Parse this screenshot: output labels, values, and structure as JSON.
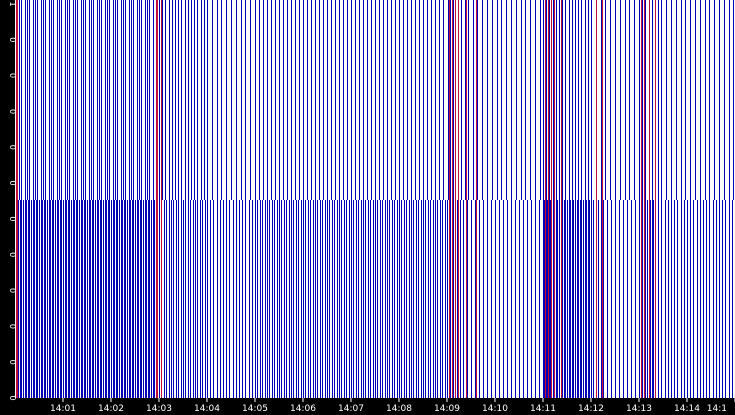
{
  "chart_data": {
    "type": "event-strip",
    "colors": {
      "background": "#ffffff",
      "frame": "#000000",
      "primary": "#0000b4",
      "secondary": "#c0103a",
      "text": "#ffffff"
    },
    "x_range": [
      "14:00:00",
      "14:15:00"
    ],
    "x_ticks": [
      "14:01",
      "14:02",
      "14:03",
      "14:04",
      "14:05",
      "14:06",
      "14:07",
      "14:08",
      "14:09",
      "14:10",
      "14:11",
      "14:12",
      "14:13",
      "14:14",
      "14:1"
    ],
    "y_ticks": [
      "1",
      "0",
      "0",
      "0",
      "0",
      "0",
      "0",
      "0",
      "0",
      "0",
      "0",
      "0"
    ],
    "series": [
      {
        "color": "#0000b4",
        "rows": "top",
        "events": [
          "14:00:02",
          "14:00:05",
          "14:00:08",
          "14:00:12",
          "14:00:15",
          "14:00:18",
          "14:00:22",
          "14:00:25",
          "14:00:28",
          "14:00:32",
          "14:00:35",
          "14:00:38",
          "14:00:42",
          "14:00:45",
          "14:00:48",
          "14:00:52",
          "14:00:55",
          "14:00:58",
          "14:01:02",
          "14:01:05",
          "14:01:08",
          "14:01:12",
          "14:01:15",
          "14:01:18",
          "14:01:22",
          "14:01:25",
          "14:01:28",
          "14:01:32",
          "14:01:35",
          "14:01:38",
          "14:01:42",
          "14:01:45",
          "14:01:48",
          "14:01:52",
          "14:01:55",
          "14:01:58",
          "14:02:02",
          "14:02:05",
          "14:02:08",
          "14:02:12",
          "14:02:15",
          "14:02:18",
          "14:02:22",
          "14:02:25",
          "14:02:28",
          "14:02:32",
          "14:02:35",
          "14:02:38",
          "14:02:42",
          "14:02:45",
          "14:02:48",
          "14:02:52",
          "14:02:56",
          "14:03:00",
          "14:03:04",
          "14:03:08",
          "14:03:12",
          "14:03:16",
          "14:03:20",
          "14:03:24",
          "14:03:28",
          "14:03:32",
          "14:03:36",
          "14:03:40",
          "14:03:44",
          "14:03:48",
          "14:03:52",
          "14:03:56",
          "14:04:00",
          "14:04:06",
          "14:04:12",
          "14:04:18",
          "14:04:24",
          "14:04:30",
          "14:04:36",
          "14:04:42",
          "14:04:48",
          "14:04:54",
          "14:05:00",
          "14:05:05",
          "14:05:10",
          "14:05:15",
          "14:05:20",
          "14:05:25",
          "14:05:30",
          "14:05:35",
          "14:05:40",
          "14:05:45",
          "14:05:50",
          "14:05:55",
          "14:06:00",
          "14:06:05",
          "14:06:10",
          "14:06:15",
          "14:06:20",
          "14:06:25",
          "14:06:30",
          "14:06:35",
          "14:06:40",
          "14:06:45",
          "14:06:50",
          "14:06:55",
          "14:07:00",
          "14:07:05",
          "14:07:10",
          "14:07:15",
          "14:07:20",
          "14:07:25",
          "14:07:30",
          "14:07:35",
          "14:07:40",
          "14:07:45",
          "14:07:50",
          "14:07:55",
          "14:08:00",
          "14:08:05",
          "14:08:10",
          "14:08:15",
          "14:08:20",
          "14:08:25",
          "14:08:30",
          "14:08:35",
          "14:08:40",
          "14:08:45",
          "14:08:50",
          "14:08:55",
          "14:09:01",
          "14:09:04",
          "14:09:07",
          "14:09:10",
          "14:09:14",
          "14:09:18",
          "14:09:22",
          "14:09:26",
          "14:09:32",
          "14:09:38",
          "14:09:44",
          "14:09:50",
          "14:09:56",
          "14:10:02",
          "14:10:08",
          "14:10:14",
          "14:10:20",
          "14:10:26",
          "14:10:32",
          "14:10:38",
          "14:10:44",
          "14:10:50",
          "14:10:56",
          "14:11:00",
          "14:11:02",
          "14:11:04",
          "14:11:06",
          "14:11:08",
          "14:11:10",
          "14:11:12",
          "14:11:16",
          "14:11:20",
          "14:11:24",
          "14:11:28",
          "14:11:32",
          "14:11:36",
          "14:11:40",
          "14:11:44",
          "14:11:48",
          "14:11:52",
          "14:11:56",
          "14:12:00",
          "14:12:06",
          "14:12:12",
          "14:12:18",
          "14:12:24",
          "14:12:30",
          "14:12:36",
          "14:12:42",
          "14:12:48",
          "14:12:54",
          "14:13:00",
          "14:13:04",
          "14:13:08",
          "14:13:12",
          "14:13:16",
          "14:13:20",
          "14:13:24",
          "14:13:28",
          "14:13:34",
          "14:13:40",
          "14:13:46",
          "14:13:52",
          "14:13:58",
          "14:14:04",
          "14:14:10",
          "14:14:16",
          "14:14:22",
          "14:14:28",
          "14:14:34",
          "14:14:40",
          "14:14:46",
          "14:14:52",
          "14:14:58"
        ]
      },
      {
        "color": "#0000b4",
        "rows": "bottom",
        "events": [
          "14:00:02",
          "14:00:04",
          "14:00:06",
          "14:00:08",
          "14:00:10",
          "14:00:12",
          "14:00:14",
          "14:00:16",
          "14:00:18",
          "14:00:20",
          "14:00:22",
          "14:00:24",
          "14:00:26",
          "14:00:28",
          "14:00:30",
          "14:00:32",
          "14:00:34",
          "14:00:36",
          "14:00:38",
          "14:00:40",
          "14:00:42",
          "14:00:44",
          "14:00:46",
          "14:00:48",
          "14:00:50",
          "14:00:52",
          "14:00:54",
          "14:00:56",
          "14:00:58",
          "14:01:00",
          "14:01:02",
          "14:01:04",
          "14:01:06",
          "14:01:08",
          "14:01:10",
          "14:01:12",
          "14:01:14",
          "14:01:16",
          "14:01:18",
          "14:01:20",
          "14:01:22",
          "14:01:24",
          "14:01:26",
          "14:01:28",
          "14:01:30",
          "14:01:32",
          "14:01:34",
          "14:01:36",
          "14:01:38",
          "14:01:40",
          "14:01:42",
          "14:01:44",
          "14:01:46",
          "14:01:48",
          "14:01:50",
          "14:01:52",
          "14:01:54",
          "14:01:56",
          "14:01:58",
          "14:02:00",
          "14:02:02",
          "14:02:04",
          "14:02:06",
          "14:02:08",
          "14:02:10",
          "14:02:12",
          "14:02:14",
          "14:02:16",
          "14:02:18",
          "14:02:20",
          "14:02:22",
          "14:02:24",
          "14:02:26",
          "14:02:28",
          "14:02:30",
          "14:02:32",
          "14:02:34",
          "14:02:36",
          "14:02:38",
          "14:02:40",
          "14:02:42",
          "14:02:44",
          "14:02:46",
          "14:02:48",
          "14:02:50",
          "14:02:52",
          "14:02:54",
          "14:02:56",
          "14:02:58",
          "14:03:00",
          "14:03:03",
          "14:03:06",
          "14:03:09",
          "14:03:12",
          "14:03:15",
          "14:03:18",
          "14:03:21",
          "14:03:24",
          "14:03:27",
          "14:03:30",
          "14:03:33",
          "14:03:36",
          "14:03:39",
          "14:03:42",
          "14:03:45",
          "14:03:48",
          "14:03:51",
          "14:03:54",
          "14:03:57",
          "14:04:00",
          "14:04:04",
          "14:04:08",
          "14:04:12",
          "14:04:16",
          "14:04:20",
          "14:04:24",
          "14:04:28",
          "14:04:32",
          "14:04:36",
          "14:04:40",
          "14:04:44",
          "14:04:48",
          "14:04:52",
          "14:04:56",
          "14:05:00",
          "14:05:03",
          "14:05:06",
          "14:05:09",
          "14:05:12",
          "14:05:15",
          "14:05:18",
          "14:05:21",
          "14:05:24",
          "14:05:27",
          "14:05:30",
          "14:05:33",
          "14:05:36",
          "14:05:39",
          "14:05:42",
          "14:05:45",
          "14:05:48",
          "14:05:51",
          "14:05:54",
          "14:05:57",
          "14:06:00",
          "14:06:03",
          "14:06:06",
          "14:06:09",
          "14:06:12",
          "14:06:15",
          "14:06:18",
          "14:06:21",
          "14:06:24",
          "14:06:27",
          "14:06:30",
          "14:06:33",
          "14:06:36",
          "14:06:39",
          "14:06:42",
          "14:06:45",
          "14:06:48",
          "14:06:51",
          "14:06:54",
          "14:06:57",
          "14:07:00",
          "14:07:03",
          "14:07:06",
          "14:07:09",
          "14:07:12",
          "14:07:15",
          "14:07:18",
          "14:07:21",
          "14:07:24",
          "14:07:27",
          "14:07:30",
          "14:07:33",
          "14:07:36",
          "14:07:39",
          "14:07:42",
          "14:07:45",
          "14:07:48",
          "14:07:51",
          "14:07:54",
          "14:07:57",
          "14:08:00",
          "14:08:03",
          "14:08:06",
          "14:08:09",
          "14:08:12",
          "14:08:15",
          "14:08:18",
          "14:08:21",
          "14:08:24",
          "14:08:27",
          "14:08:30",
          "14:08:33",
          "14:08:36",
          "14:08:39",
          "14:08:42",
          "14:08:45",
          "14:08:48",
          "14:08:51",
          "14:08:54",
          "14:08:57",
          "14:09:00",
          "14:09:02",
          "14:09:04",
          "14:09:06",
          "14:09:08",
          "14:09:10",
          "14:09:12",
          "14:09:14",
          "14:09:16",
          "14:09:20",
          "14:09:25",
          "14:09:30",
          "14:09:35",
          "14:09:40",
          "14:09:45",
          "14:09:50",
          "14:09:55",
          "14:10:00",
          "14:10:05",
          "14:10:10",
          "14:10:15",
          "14:10:20",
          "14:10:25",
          "14:10:30",
          "14:10:35",
          "14:10:40",
          "14:10:45",
          "14:10:50",
          "14:10:55",
          "14:11:00",
          "14:11:01",
          "14:11:02",
          "14:11:03",
          "14:11:04",
          "14:11:05",
          "14:11:06",
          "14:11:07",
          "14:11:08",
          "14:11:09",
          "14:11:10",
          "14:11:12",
          "14:11:14",
          "14:11:16",
          "14:11:18",
          "14:11:20",
          "14:11:22",
          "14:11:24",
          "14:11:26",
          "14:11:28",
          "14:11:30",
          "14:11:32",
          "14:11:34",
          "14:11:36",
          "14:11:38",
          "14:11:40",
          "14:11:42",
          "14:11:44",
          "14:11:46",
          "14:11:48",
          "14:11:50",
          "14:11:52",
          "14:11:54",
          "14:11:56",
          "14:11:58",
          "14:12:00",
          "14:12:03",
          "14:12:06",
          "14:12:09",
          "14:12:12",
          "14:12:15",
          "14:12:20",
          "14:12:25",
          "14:12:30",
          "14:12:35",
          "14:12:40",
          "14:12:45",
          "14:12:50",
          "14:12:55",
          "14:13:00",
          "14:13:02",
          "14:13:04",
          "14:13:06",
          "14:13:08",
          "14:13:10",
          "14:13:12",
          "14:13:14",
          "14:13:16",
          "14:13:18",
          "14:13:20",
          "14:13:24",
          "14:13:28",
          "14:13:32",
          "14:13:36",
          "14:13:40",
          "14:13:44",
          "14:13:48",
          "14:13:52",
          "14:13:56",
          "14:14:00",
          "14:14:04",
          "14:14:08",
          "14:14:12",
          "14:14:16",
          "14:14:20",
          "14:14:24",
          "14:14:28",
          "14:14:32",
          "14:14:36",
          "14:14:40",
          "14:14:44",
          "14:14:48",
          "14:14:52",
          "14:14:56"
        ]
      },
      {
        "color": "#c0103a",
        "rows": "full",
        "events": [
          "14:00:01",
          "14:00:03",
          "14:02:56",
          "14:02:58",
          "14:03:02",
          "14:09:02",
          "14:09:06",
          "14:09:10",
          "14:09:14",
          "14:09:24",
          "14:09:36",
          "14:11:02",
          "14:11:06",
          "14:11:10",
          "14:11:14",
          "14:11:22",
          "14:12:06",
          "14:12:14",
          "14:13:02",
          "14:13:06",
          "14:13:12",
          "14:13:20"
        ]
      }
    ]
  }
}
